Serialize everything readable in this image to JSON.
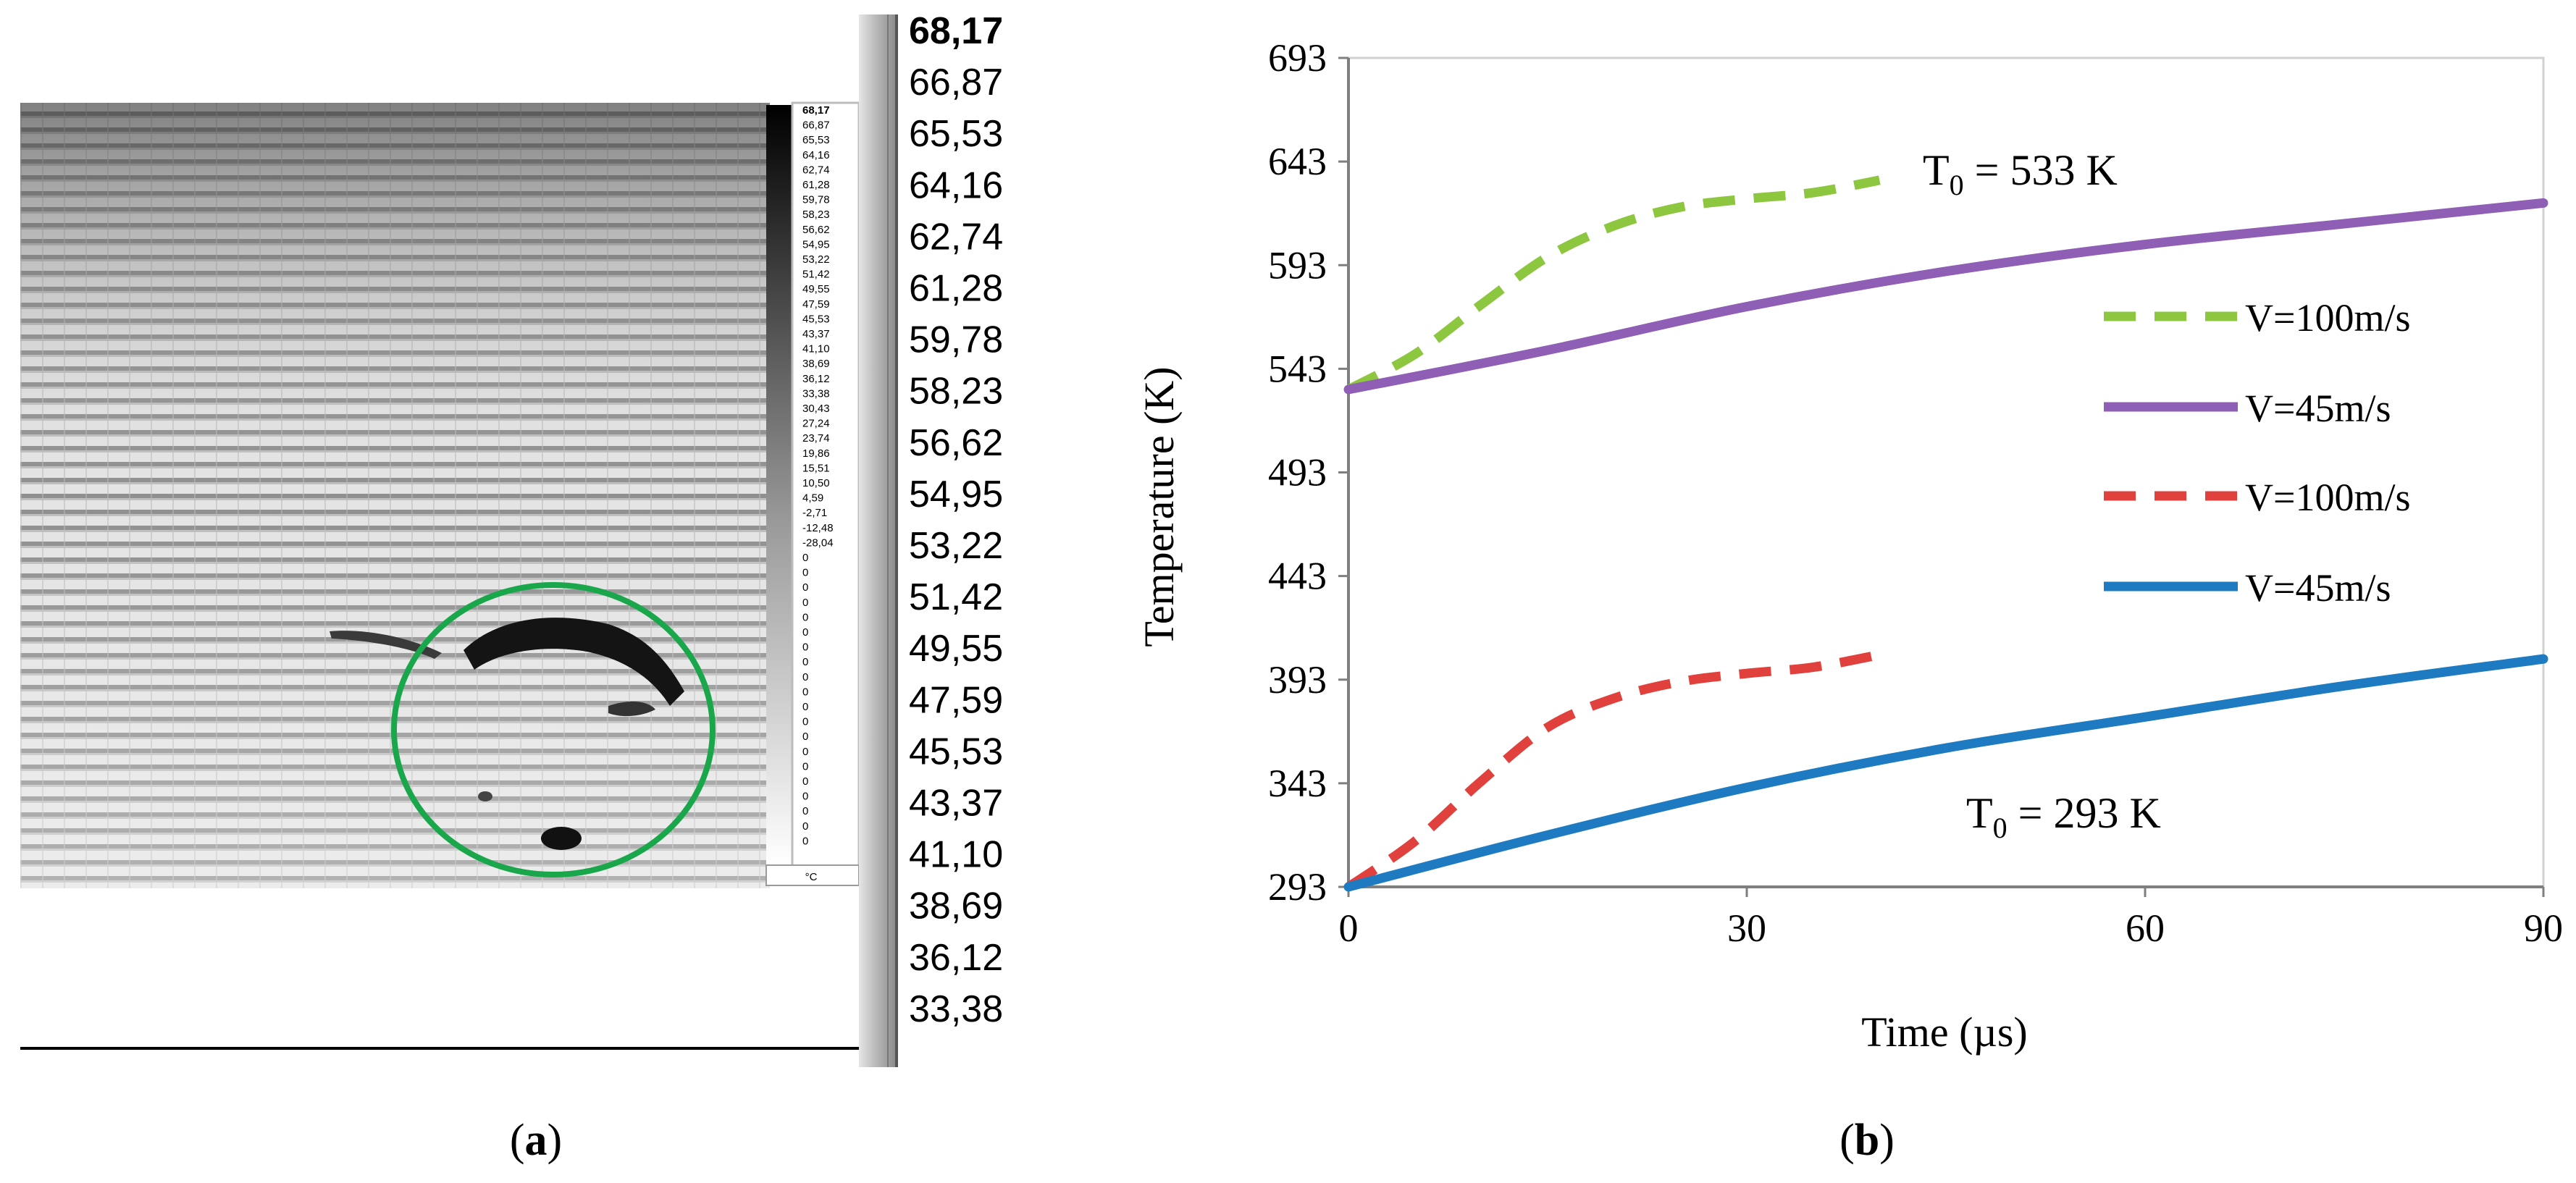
{
  "panel_a": {
    "caption": "(a)",
    "caption_parts": [
      "(",
      "a",
      ")"
    ],
    "tiny_scale_labels": [
      "68,17",
      "66,87",
      "65,53",
      "64,16",
      "62,74",
      "61,28",
      "59,78",
      "58,23",
      "56,62",
      "54,95",
      "53,22",
      "51,42",
      "49,55",
      "47,59",
      "45,53",
      "43,37",
      "41,10",
      "38,69",
      "36,12",
      "33,38",
      "30,43",
      "27,24",
      "23,74",
      "19,86",
      "15,51",
      "10,50",
      "4,59",
      "-2,71",
      "-12,48",
      "-28,04",
      "0",
      "0",
      "0",
      "0",
      "0",
      "0",
      "0",
      "0",
      "0",
      "0",
      "0",
      "0",
      "0",
      "0",
      "0",
      "0",
      "0",
      "0",
      "0",
      "0"
    ],
    "tiny_unit": "°C",
    "large_scale_labels": [
      "68,17",
      "66,87",
      "65,53",
      "64,16",
      "62,74",
      "61,28",
      "59,78",
      "58,23",
      "56,62",
      "54,95",
      "53,22",
      "51,42",
      "49,55",
      "47,59",
      "45,53",
      "43,37",
      "41,10",
      "38,69",
      "36,12",
      "33,38"
    ],
    "colors": {
      "highlight_circle": "#1aa64a",
      "image_bg": "#d9d9d9",
      "scale_bar": "#c8c8c8"
    }
  },
  "panel_b": {
    "caption": "(b)",
    "caption_parts": [
      "(",
      "b",
      ")"
    ],
    "annotations": [
      {
        "id": "t0-533",
        "base": "T",
        "sub": "0",
        "rest": " = 533 K"
      },
      {
        "id": "t0-293",
        "base": "T",
        "sub": "0",
        "rest": " = 293 K"
      }
    ]
  },
  "chart_data": {
    "type": "line",
    "title": "",
    "xlabel": "Time (µs)",
    "ylabel": "Temperature (K)",
    "xlim": [
      0,
      90
    ],
    "ylim": [
      293,
      693
    ],
    "xticks": [
      0,
      30,
      60,
      90
    ],
    "xtick_labels": [
      "0",
      "30",
      "60",
      "90"
    ],
    "yticks": [
      293,
      343,
      393,
      443,
      493,
      543,
      593,
      643,
      693
    ],
    "ytick_labels": [
      "293",
      "343",
      "393",
      "443",
      "493",
      "543",
      "593",
      "643",
      "693"
    ],
    "grid": false,
    "legend_position": "right",
    "series": [
      {
        "name": "V=100m/s",
        "color": "#8dc63f",
        "dash": true,
        "x": [
          0,
          5,
          10,
          15,
          20,
          25,
          30,
          35,
          40
        ],
        "y": [
          533,
          550,
          574,
          597,
          612,
          621,
          625,
          628,
          634
        ]
      },
      {
        "name": "V=45m/s",
        "color": "#8e5fb5",
        "dash": false,
        "x": [
          0,
          15,
          30,
          45,
          60,
          75,
          90
        ],
        "y": [
          533,
          552,
          573,
          590,
          603,
          613,
          623
        ]
      },
      {
        "name": "V=100m/s",
        "color": "#e0413c",
        "dash": true,
        "x": [
          0,
          5,
          10,
          15,
          20,
          25,
          30,
          35,
          40
        ],
        "y": [
          293,
          315,
          344,
          370,
          384,
          392,
          396,
          399,
          405
        ]
      },
      {
        "name": "V=45m/s",
        "color": "#1f7bc1",
        "dash": false,
        "x": [
          0,
          15,
          30,
          45,
          60,
          75,
          90
        ],
        "y": [
          293,
          318,
          341,
          360,
          375,
          390,
          403
        ]
      }
    ]
  }
}
